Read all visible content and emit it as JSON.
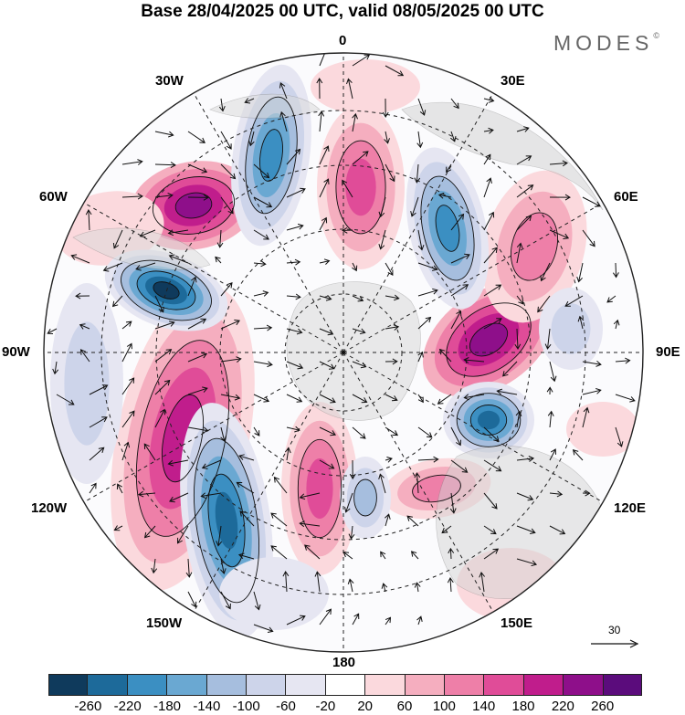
{
  "title": "Base 28/04/2025 00 UTC, valid 08/05/2025 00 UTC",
  "brand": {
    "name": "MODES",
    "mark": "©"
  },
  "longitude_labels": {
    "top": "0",
    "top_left": "30W",
    "top_right": "30E",
    "upper_left": "60W",
    "upper_right": "60E",
    "left": "90W",
    "right": "90E",
    "lower_left": "120W",
    "lower_right": "120E",
    "bottom_left": "150W",
    "bottom_right": "150E",
    "bottom": "180"
  },
  "reference_vector": {
    "value": "30"
  },
  "colorbar": {
    "colors": [
      "#0f3a5c",
      "#1d6a9a",
      "#3b8fc2",
      "#6aa8d2",
      "#a6bede",
      "#cdd4ea",
      "#e6e6f2",
      "#ffffff",
      "#fbd9dd",
      "#f5aebf",
      "#ee7fa8",
      "#e04c98",
      "#c01d8c",
      "#8e0f8a",
      "#5b0c7c"
    ],
    "labels": [
      "-260",
      "-220",
      "-180",
      "-140",
      "-100",
      "-60",
      "-20",
      "20",
      "60",
      "100",
      "140",
      "180",
      "220",
      "260"
    ]
  }
}
